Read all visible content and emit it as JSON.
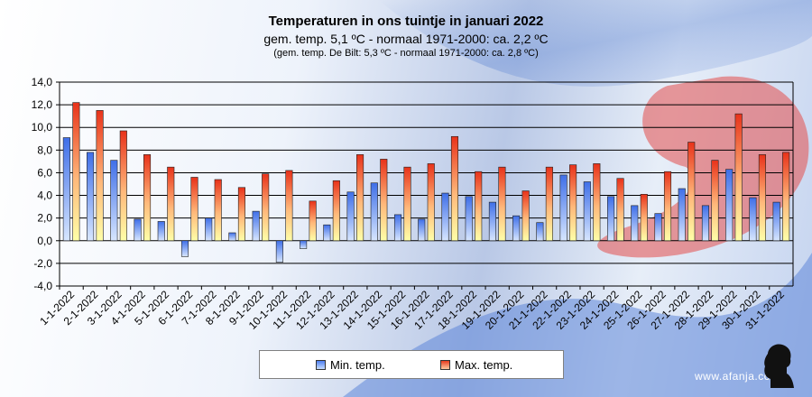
{
  "chart_data": {
    "type": "bar",
    "title": "Temperaturen in ons tuintje in januari 2022",
    "subtitle": "gem. temp. 5,1 ºC - normaal 1971-2000: ca. 2,2 ºC",
    "subtitle2": "(gem. temp. De Bilt: 5,3 ºC - normaal 1971-2000: ca. 2,8 ºC)",
    "xlabel": "",
    "ylabel": "",
    "ylim": [
      -4,
      14
    ],
    "ytick_step": 2,
    "ytick_labels": [
      "14,0",
      "12,0",
      "10,0",
      "8,0",
      "6,0",
      "4,0",
      "2,0",
      "0,0",
      "-2,0",
      "-4,0"
    ],
    "grid": true,
    "legend_position": "bottom-center",
    "categories": [
      "1-1-2022",
      "2-1-2022",
      "3-1-2022",
      "4-1-2022",
      "5-1-2022",
      "6-1-2022",
      "7-1-2022",
      "8-1-2022",
      "9-1-2022",
      "10-1-2022",
      "11-1-2022",
      "12-1-2022",
      "13-1-2022",
      "14-1-2022",
      "15-1-2022",
      "16-1-2022",
      "17-1-2022",
      "18-1-2022",
      "19-1-2022",
      "20-1-2022",
      "21-1-2022",
      "22-1-2022",
      "23-1-2022",
      "24-1-2022",
      "25-1-2022",
      "26-1-2022",
      "27-1-2022",
      "28-1-2022",
      "29-1-2022",
      "30-1-2022",
      "31-1-2022"
    ],
    "series": [
      {
        "name": "Min. temp.",
        "color": "#3f6fe8",
        "values": [
          9.1,
          7.8,
          7.1,
          1.9,
          1.7,
          -1.4,
          2.0,
          0.7,
          2.6,
          -1.9,
          -0.7,
          1.4,
          4.3,
          5.1,
          2.3,
          1.9,
          4.2,
          3.9,
          3.4,
          2.2,
          1.6,
          5.8,
          5.2,
          3.9,
          3.1,
          2.4,
          4.6,
          3.1,
          6.3,
          3.8,
          3.4
        ]
      },
      {
        "name": "Max. temp.",
        "color": "#e8321a",
        "values": [
          12.2,
          11.5,
          9.7,
          7.6,
          6.5,
          5.6,
          5.4,
          4.7,
          5.9,
          6.2,
          3.5,
          5.3,
          7.6,
          7.2,
          6.5,
          6.8,
          9.2,
          6.1,
          6.5,
          4.4,
          6.5,
          6.7,
          6.8,
          5.5,
          4.1,
          6.1,
          8.7,
          7.1,
          11.2,
          7.6,
          7.8
        ]
      }
    ]
  },
  "legend": {
    "min_label": "Min. temp.",
    "max_label": "Max. temp."
  },
  "credit": "www.afanja.com"
}
